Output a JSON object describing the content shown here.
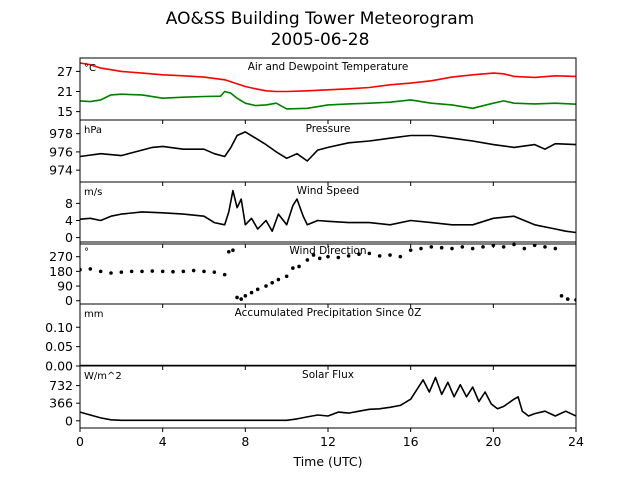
{
  "figure": {
    "title_line1": "AO&SS Building Tower Meteorogram",
    "title_line2": "2005-06-28",
    "xlabel": "Time (UTC)"
  },
  "colors": {
    "temperature": "#ff0000",
    "dewpoint": "#008000",
    "default": "#000000"
  },
  "chart_data": [
    {
      "type": "line",
      "title": "Air and Dewpoint Temperature",
      "unit": "°C",
      "xlim": [
        0,
        24
      ],
      "ylim": [
        12.5,
        31
      ],
      "yticks": [
        15,
        21,
        27
      ],
      "series": [
        {
          "color": "#ff0000",
          "x": [
            0,
            0.5,
            1,
            1.5,
            2,
            3,
            4,
            5,
            6,
            7,
            7.5,
            8,
            8.5,
            9,
            9.5,
            10,
            11,
            12,
            13,
            14,
            15,
            16,
            17,
            18,
            19,
            20,
            20.5,
            21,
            22,
            23,
            24
          ],
          "y": [
            29.5,
            29,
            28,
            27.5,
            27,
            26.5,
            26,
            25.7,
            25.3,
            24.5,
            23.5,
            22.5,
            21.8,
            21.2,
            21,
            21,
            21.2,
            21.5,
            21.8,
            22.2,
            23,
            23.5,
            24.2,
            25.3,
            26,
            26.5,
            26.3,
            25.5,
            25.2,
            25.7,
            25.5
          ]
        },
        {
          "color": "#008000",
          "x": [
            0,
            0.5,
            1,
            1.5,
            2,
            3,
            4,
            5,
            6,
            6.8,
            7,
            7.3,
            7.6,
            8,
            8.5,
            9,
            9.5,
            10,
            11,
            12,
            13,
            14,
            15,
            16,
            17,
            18,
            19,
            20,
            20.5,
            21,
            22,
            23,
            24
          ],
          "y": [
            18.2,
            18,
            18.5,
            20,
            20.2,
            20,
            19,
            19.3,
            19.5,
            19.6,
            21,
            20.5,
            19,
            17.5,
            16.8,
            17,
            17.5,
            15.8,
            16,
            17,
            17.3,
            17.5,
            17.8,
            18.5,
            17.5,
            17,
            16,
            17.5,
            18.2,
            17.5,
            17.3,
            17.5,
            17.2
          ]
        }
      ]
    },
    {
      "type": "line",
      "title": "Pressure",
      "unit": "hPa",
      "xlim": [
        0,
        24
      ],
      "ylim": [
        972.7,
        979.5
      ],
      "yticks": [
        974,
        976,
        978
      ],
      "series": [
        {
          "color": "#000000",
          "x": [
            0,
            1,
            2,
            3,
            3.5,
            4,
            5,
            6,
            6.5,
            7,
            7.3,
            7.6,
            8,
            8.5,
            9,
            9.5,
            10,
            10.5,
            11,
            11.5,
            12,
            13,
            14,
            15,
            16,
            17,
            18,
            19,
            20,
            21,
            22,
            22.5,
            23,
            24
          ],
          "y": [
            975.5,
            975.8,
            975.6,
            976.2,
            976.5,
            976.6,
            976.3,
            976.3,
            975.8,
            975.5,
            976.5,
            977.8,
            978.2,
            977.5,
            976.8,
            976,
            975.3,
            975.8,
            975,
            976.2,
            976.5,
            977,
            977.2,
            977.5,
            977.8,
            977.8,
            977.5,
            977.2,
            976.8,
            976.5,
            976.8,
            976.3,
            976.9,
            976.8
          ]
        }
      ]
    },
    {
      "type": "line",
      "title": "Wind Speed",
      "unit": "m/s",
      "xlim": [
        0,
        24
      ],
      "ylim": [
        -1.5,
        13
      ],
      "yticks": [
        0,
        4,
        8
      ],
      "series": [
        {
          "color": "#000000",
          "x": [
            0,
            0.5,
            1,
            1.5,
            2,
            3,
            4,
            5,
            6,
            6.5,
            7,
            7.2,
            7.4,
            7.6,
            7.8,
            8,
            8.3,
            8.6,
            9,
            9.3,
            9.6,
            10,
            10.3,
            10.5,
            10.8,
            11,
            11.5,
            12,
            13,
            14,
            15,
            16,
            17,
            18,
            19,
            20,
            21,
            22,
            23,
            23.5,
            24
          ],
          "y": [
            4.3,
            4.5,
            4,
            5,
            5.5,
            6,
            5.8,
            5.5,
            5,
            3.5,
            3,
            6,
            11,
            7,
            9,
            3,
            4.5,
            2,
            4,
            1.5,
            5.5,
            3,
            7.5,
            9,
            5,
            3,
            4,
            3.8,
            3.5,
            3.5,
            3,
            4,
            3.5,
            3,
            3,
            4.5,
            5,
            3,
            2,
            1.5,
            1.2
          ]
        }
      ]
    },
    {
      "type": "scatter",
      "title": "Wind Direction",
      "unit": "°",
      "xlim": [
        0,
        24
      ],
      "ylim": [
        -20,
        360
      ],
      "yticks": [
        0,
        90,
        180,
        270
      ],
      "series": [
        {
          "color": "#000000",
          "x": [
            0,
            0.5,
            1,
            1.5,
            2,
            2.5,
            3,
            3.5,
            4,
            4.5,
            5,
            5.5,
            6,
            6.5,
            7,
            7.2,
            7.4,
            7.6,
            7.8,
            8,
            8.3,
            8.6,
            9,
            9.3,
            9.6,
            10,
            10.3,
            10.6,
            11,
            11.3,
            11.6,
            12,
            12.5,
            13,
            13.5,
            14,
            14.5,
            15,
            15.5,
            16,
            16.5,
            17,
            17.5,
            18,
            18.5,
            19,
            19.5,
            20,
            20.5,
            21,
            21.5,
            22,
            22.5,
            23,
            23.3,
            23.6,
            24
          ],
          "y": [
            190,
            195,
            180,
            170,
            175,
            180,
            180,
            182,
            180,
            178,
            180,
            185,
            180,
            175,
            160,
            300,
            310,
            20,
            10,
            30,
            50,
            70,
            90,
            110,
            130,
            150,
            200,
            210,
            250,
            280,
            260,
            270,
            265,
            275,
            285,
            290,
            275,
            280,
            270,
            310,
            320,
            330,
            325,
            320,
            330,
            320,
            330,
            340,
            330,
            345,
            320,
            340,
            330,
            320,
            30,
            10,
            5
          ]
        }
      ]
    },
    {
      "type": "line",
      "title": "Accumulated Precipitation Since 0Z",
      "unit": "mm",
      "xlim": [
        0,
        24
      ],
      "ylim": [
        0,
        0.16
      ],
      "yticks": [
        0.0,
        0.05,
        0.1
      ],
      "series": [
        {
          "color": "#000000",
          "x": [
            0,
            24
          ],
          "y": [
            0,
            0
          ]
        }
      ]
    },
    {
      "type": "line",
      "title": "Solar Flux",
      "unit": "W/m^2",
      "xlim": [
        0,
        24
      ],
      "ylim": [
        -150,
        1140
      ],
      "yticks": [
        0,
        366,
        732
      ],
      "series": [
        {
          "color": "#000000",
          "x": [
            0,
            0.5,
            1,
            1.5,
            2,
            3,
            4,
            5,
            6,
            7,
            8,
            9,
            10,
            10.5,
            11,
            11.5,
            12,
            12.5,
            13,
            13.5,
            14,
            14.5,
            15,
            15.5,
            16,
            16.3,
            16.6,
            16.9,
            17.2,
            17.5,
            17.8,
            18.1,
            18.4,
            18.7,
            19,
            19.3,
            19.6,
            19.9,
            20.2,
            20.5,
            21,
            21.2,
            21.4,
            21.7,
            22,
            22.5,
            23,
            23.5,
            24
          ],
          "y": [
            180,
            120,
            60,
            20,
            10,
            10,
            10,
            10,
            10,
            10,
            10,
            10,
            10,
            40,
            80,
            120,
            100,
            180,
            160,
            200,
            240,
            250,
            280,
            320,
            450,
            650,
            850,
            600,
            900,
            550,
            800,
            500,
            750,
            500,
            700,
            400,
            600,
            350,
            250,
            300,
            450,
            500,
            200,
            100,
            150,
            200,
            100,
            200,
            100
          ]
        }
      ]
    }
  ]
}
